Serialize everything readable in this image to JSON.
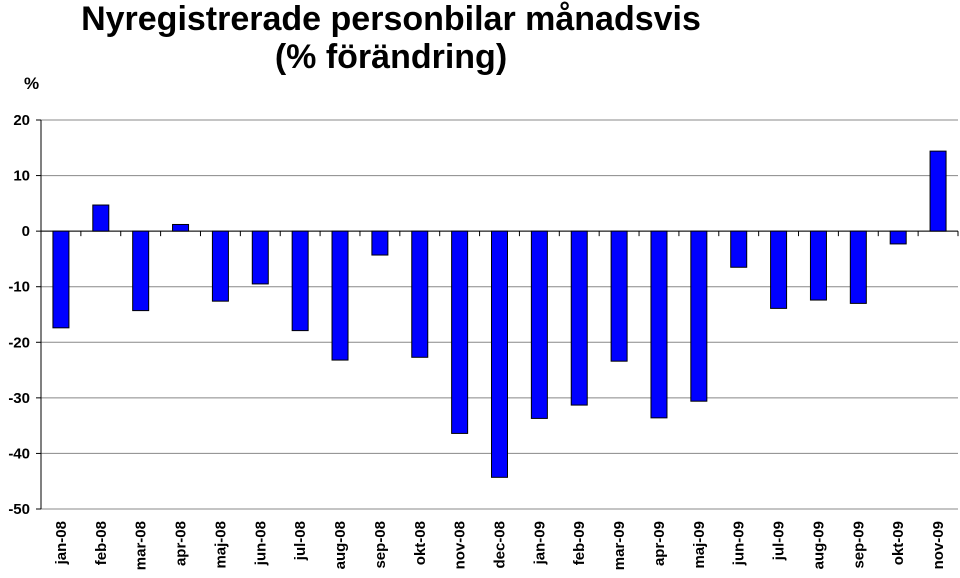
{
  "chart_data": {
    "type": "bar",
    "title_line1": "Nyregistrerade personbilar månadsvis",
    "title_line2": "(% förändring)",
    "ylabel": "%",
    "ylim": [
      -50,
      20
    ],
    "yticks": [
      20,
      10,
      0,
      -10,
      -20,
      -30,
      -40,
      -50
    ],
    "grid": true,
    "bar_color": "#0000ff",
    "categories": [
      "jan-08",
      "feb-08",
      "mar-08",
      "apr-08",
      "maj-08",
      "jun-08",
      "jul-08",
      "aug-08",
      "sep-08",
      "okt-08",
      "nov-08",
      "dec-08",
      "jan-09",
      "feb-09",
      "mar-09",
      "apr-09",
      "maj-09",
      "jun-09",
      "jul-09",
      "aug-09",
      "sep-09",
      "okt-09",
      "nov-09"
    ],
    "values": [
      -17.4,
      4.7,
      -14.3,
      1.2,
      -12.6,
      -9.5,
      -17.9,
      -23.2,
      -4.3,
      -22.7,
      -36.4,
      -44.3,
      -33.7,
      -31.3,
      -23.4,
      -33.6,
      -30.6,
      -6.5,
      -13.9,
      -12.4,
      -13.0,
      -2.3,
      14.4
    ]
  }
}
